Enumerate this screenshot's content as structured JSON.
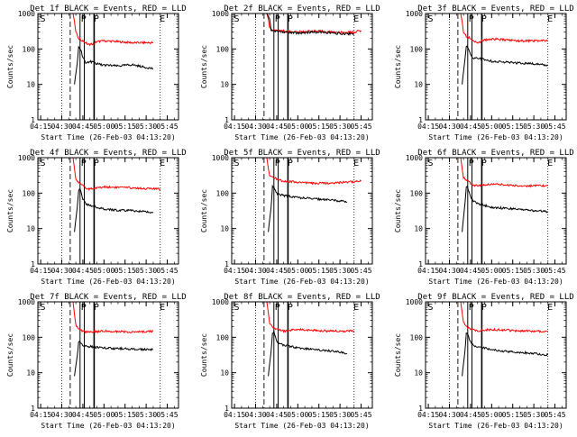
{
  "figure": {
    "x_tick_labels": [
      "04:15",
      "04:30",
      "04:45",
      "05:00",
      "05:15",
      "05:30",
      "05:45"
    ],
    "y_tick_labels": [
      "1",
      "10",
      "100",
      "1000"
    ],
    "ylabel": "Counts/sec",
    "xlabel": "Start Time (26-Feb-03 04:13:20)",
    "markers": {
      "s": "S",
      "p": "P",
      "e": "E"
    },
    "colors": {
      "events": "#000000",
      "lld": "#ff0000",
      "axes": "#000000"
    }
  },
  "chart_data": [
    {
      "type": "line",
      "title": "Det 1f BLACK = Events, RED = LLD",
      "xlim": [
        "04:13",
        "05:53"
      ],
      "ylim": [
        1,
        1000
      ],
      "yscale": "log",
      "series": [
        {
          "x": [
            "04:38",
            "04:39",
            "04:40",
            "04:42",
            "04:45",
            "04:47",
            "04:50",
            "04:55",
            "05:00",
            "05:10",
            "05:20",
            "05:30",
            "05:35"
          ],
          "values": [
            1000,
            600,
            300,
            200,
            170,
            150,
            130,
            160,
            170,
            160,
            150,
            150,
            150
          ]
        },
        {
          "x": [
            "04:39",
            "04:41",
            "04:42",
            "04:43",
            "04:44",
            "04:45",
            "04:47",
            "04:50",
            "04:55",
            "05:00",
            "05:10",
            "05:20",
            "05:30",
            "05:35"
          ],
          "values": [
            10,
            40,
            110,
            100,
            80,
            60,
            40,
            45,
            38,
            35,
            33,
            36,
            30,
            28
          ]
        }
      ]
    },
    {
      "type": "line",
      "title": "Det 2f BLACK = Events, RED = LLD",
      "xlim": [
        "04:13",
        "05:53"
      ],
      "ylim": [
        1,
        1000
      ],
      "yscale": "log",
      "series": [
        {
          "x": [
            "04:38",
            "04:39",
            "04:40",
            "04:41",
            "04:42",
            "04:45",
            "04:50",
            "05:00",
            "05:10",
            "05:20",
            "05:30",
            "05:40",
            "05:45"
          ],
          "values": [
            1000,
            700,
            400,
            350,
            340,
            330,
            320,
            300,
            320,
            310,
            290,
            300,
            330
          ]
        },
        {
          "x": [
            "04:38",
            "04:40",
            "04:41",
            "04:42",
            "04:45",
            "04:50",
            "05:00",
            "05:10",
            "05:20",
            "05:30",
            "05:40"
          ],
          "values": [
            1000,
            700,
            350,
            330,
            310,
            300,
            280,
            300,
            290,
            270,
            270
          ]
        }
      ]
    },
    {
      "type": "line",
      "title": "Det 3f BLACK = Events, RED = LLD",
      "xlim": [
        "04:13",
        "05:53"
      ],
      "ylim": [
        1,
        1000
      ],
      "yscale": "log",
      "series": [
        {
          "x": [
            "04:38",
            "04:39",
            "04:40",
            "04:42",
            "04:45",
            "04:47",
            "04:50",
            "04:55",
            "05:00",
            "05:10",
            "05:20",
            "05:30",
            "05:40"
          ],
          "values": [
            1000,
            600,
            300,
            220,
            200,
            170,
            150,
            180,
            190,
            180,
            170,
            170,
            170
          ]
        },
        {
          "x": [
            "04:39",
            "04:41",
            "04:42",
            "04:43",
            "04:44",
            "04:45",
            "04:47",
            "04:50",
            "04:55",
            "05:00",
            "05:10",
            "05:20",
            "05:30",
            "05:40"
          ],
          "values": [
            10,
            50,
            120,
            110,
            90,
            70,
            55,
            55,
            50,
            45,
            42,
            40,
            38,
            35
          ]
        }
      ]
    },
    {
      "type": "line",
      "title": "Det 4f BLACK = Events, RED = LLD",
      "xlim": [
        "04:13",
        "05:53"
      ],
      "ylim": [
        1,
        1000
      ],
      "yscale": "log",
      "series": [
        {
          "x": [
            "04:38",
            "04:39",
            "04:40",
            "04:42",
            "04:45",
            "04:47",
            "04:50",
            "04:55",
            "05:00",
            "05:10",
            "05:20",
            "05:30",
            "05:40"
          ],
          "values": [
            1000,
            500,
            250,
            200,
            160,
            140,
            130,
            140,
            150,
            145,
            140,
            135,
            130
          ]
        },
        {
          "x": [
            "04:39",
            "04:41",
            "04:42",
            "04:43",
            "04:44",
            "04:45",
            "04:47",
            "04:50",
            "04:55",
            "05:00",
            "05:10",
            "05:20",
            "05:30",
            "05:35"
          ],
          "values": [
            8,
            40,
            120,
            130,
            100,
            70,
            50,
            45,
            40,
            35,
            33,
            32,
            30,
            28
          ]
        }
      ]
    },
    {
      "type": "line",
      "title": "Det 5f BLACK = Events, RED = LLD",
      "xlim": [
        "04:13",
        "05:53"
      ],
      "ylim": [
        1,
        1000
      ],
      "yscale": "log",
      "series": [
        {
          "x": [
            "04:38",
            "04:39",
            "04:40",
            "04:42",
            "04:45",
            "04:47",
            "04:50",
            "04:55",
            "05:00",
            "05:10",
            "05:20",
            "05:30",
            "05:40",
            "05:45"
          ],
          "values": [
            1000,
            500,
            320,
            280,
            250,
            230,
            220,
            210,
            200,
            190,
            190,
            200,
            210,
            220
          ]
        },
        {
          "x": [
            "04:39",
            "04:41",
            "04:42",
            "04:43",
            "04:44",
            "04:45",
            "04:47",
            "04:50",
            "04:55",
            "05:00",
            "05:10",
            "05:20",
            "05:30",
            "05:35"
          ],
          "values": [
            8,
            40,
            150,
            140,
            120,
            100,
            90,
            85,
            80,
            75,
            70,
            65,
            60,
            55
          ]
        }
      ]
    },
    {
      "type": "line",
      "title": "Det 6f BLACK = Events, RED = LLD",
      "xlim": [
        "04:13",
        "05:53"
      ],
      "ylim": [
        1,
        1000
      ],
      "yscale": "log",
      "series": [
        {
          "x": [
            "04:38",
            "04:39",
            "04:40",
            "04:42",
            "04:45",
            "04:47",
            "04:50",
            "04:55",
            "05:00",
            "05:10",
            "05:20",
            "05:30",
            "05:40"
          ],
          "values": [
            1000,
            500,
            280,
            230,
            190,
            170,
            160,
            170,
            180,
            170,
            160,
            160,
            160
          ]
        },
        {
          "x": [
            "04:39",
            "04:41",
            "04:42",
            "04:43",
            "04:44",
            "04:45",
            "04:47",
            "04:50",
            "04:55",
            "05:00",
            "05:10",
            "05:20",
            "05:30",
            "05:40"
          ],
          "values": [
            8,
            50,
            150,
            140,
            110,
            80,
            60,
            50,
            45,
            40,
            37,
            35,
            32,
            30
          ]
        }
      ]
    },
    {
      "type": "line",
      "title": "Det 7f BLACK = Events, RED = LLD",
      "xlim": [
        "04:13",
        "05:53"
      ],
      "ylim": [
        1,
        1000
      ],
      "yscale": "log",
      "series": [
        {
          "x": [
            "04:38",
            "04:39",
            "04:40",
            "04:42",
            "04:45",
            "04:47",
            "04:50",
            "04:55",
            "05:00",
            "05:10",
            "05:20",
            "05:30",
            "05:35"
          ],
          "values": [
            1000,
            450,
            230,
            170,
            150,
            140,
            140,
            145,
            150,
            145,
            140,
            145,
            150
          ]
        },
        {
          "x": [
            "04:39",
            "04:41",
            "04:42",
            "04:43",
            "04:44",
            "04:45",
            "04:47",
            "04:50",
            "04:55",
            "05:00",
            "05:10",
            "05:20",
            "05:30",
            "05:35"
          ],
          "values": [
            8,
            30,
            70,
            75,
            65,
            60,
            55,
            55,
            52,
            50,
            48,
            47,
            45,
            45
          ]
        }
      ]
    },
    {
      "type": "line",
      "title": "Det 8f BLACK = Events, RED = LLD",
      "xlim": [
        "04:13",
        "05:53"
      ],
      "ylim": [
        1,
        1000
      ],
      "yscale": "log",
      "series": [
        {
          "x": [
            "04:38",
            "04:39",
            "04:40",
            "04:42",
            "04:45",
            "04:47",
            "04:50",
            "04:55",
            "05:00",
            "05:10",
            "05:20",
            "05:30",
            "05:40"
          ],
          "values": [
            1000,
            500,
            260,
            190,
            170,
            160,
            150,
            160,
            165,
            160,
            150,
            150,
            150
          ]
        },
        {
          "x": [
            "04:39",
            "04:41",
            "04:42",
            "04:43",
            "04:44",
            "04:45",
            "04:47",
            "04:50",
            "04:55",
            "05:00",
            "05:10",
            "05:20",
            "05:30",
            "05:35"
          ],
          "values": [
            8,
            40,
            130,
            140,
            110,
            80,
            65,
            60,
            55,
            50,
            45,
            42,
            38,
            35
          ]
        }
      ]
    },
    {
      "type": "line",
      "title": "Det 9f BLACK = Events, RED = LLD",
      "xlim": [
        "04:13",
        "05:53"
      ],
      "ylim": [
        1,
        1000
      ],
      "yscale": "log",
      "series": [
        {
          "x": [
            "04:38",
            "04:39",
            "04:40",
            "04:42",
            "04:45",
            "04:47",
            "04:50",
            "04:55",
            "05:00",
            "05:10",
            "05:20",
            "05:30",
            "05:40"
          ],
          "values": [
            1000,
            500,
            260,
            200,
            170,
            160,
            150,
            160,
            165,
            160,
            150,
            150,
            150
          ]
        },
        {
          "x": [
            "04:39",
            "04:41",
            "04:42",
            "04:43",
            "04:44",
            "04:45",
            "04:47",
            "04:50",
            "04:55",
            "05:00",
            "05:10",
            "05:20",
            "05:30",
            "05:40"
          ],
          "values": [
            8,
            40,
            130,
            120,
            95,
            75,
            60,
            55,
            50,
            45,
            40,
            38,
            35,
            32
          ]
        }
      ]
    }
  ]
}
